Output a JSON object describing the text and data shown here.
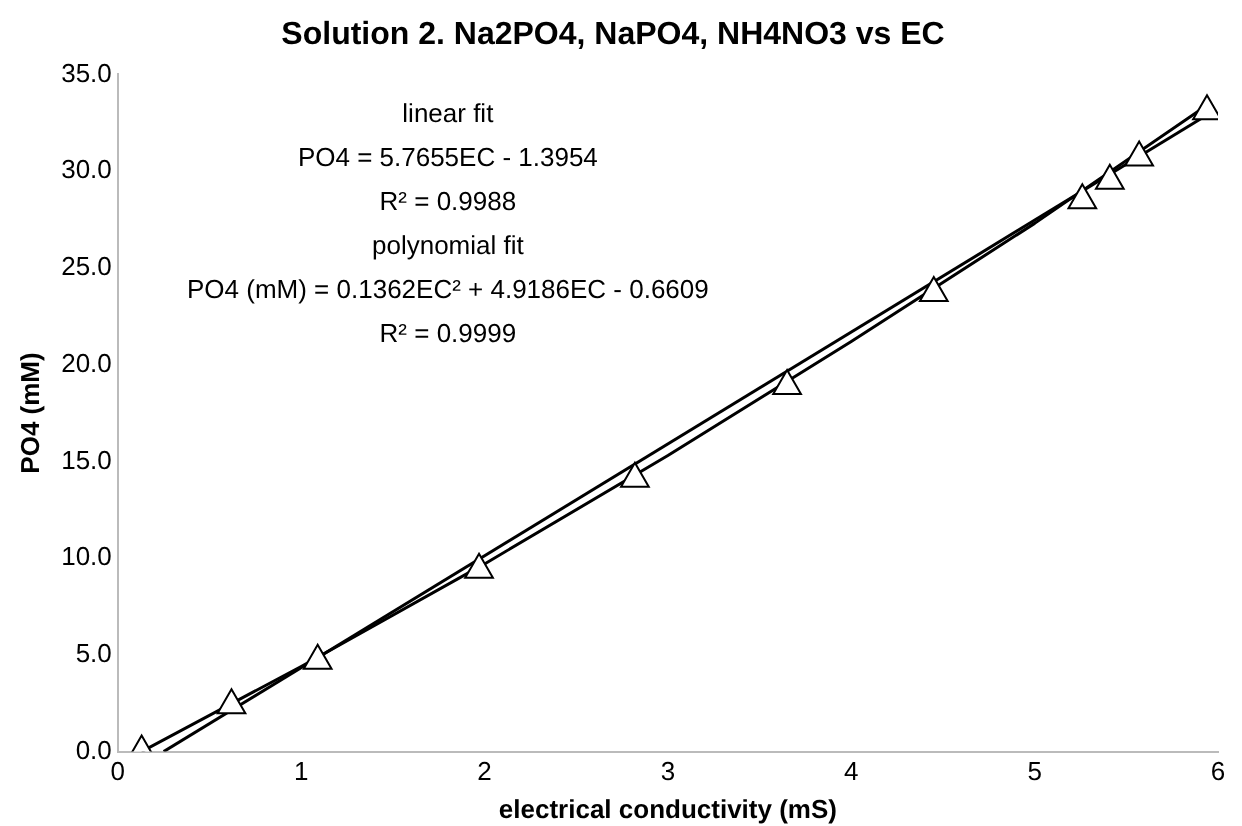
{
  "chart_data": {
    "type": "scatter",
    "title": "Solution 2. Na2PO4, NaPO4, NH4NO3 vs EC",
    "xlabel": "electrical conductivity (mS)",
    "ylabel": "PO4 (mM)",
    "annotations": [
      "linear fit",
      "PO4 = 5.7655EC - 1.3954",
      "R² = 0.9988",
      "polynomial fit",
      "PO4 (mM) = 0.1362EC² + 4.9186EC - 0.6609",
      "R² = 0.9999"
    ],
    "x": [
      0.13,
      0.62,
      1.09,
      1.97,
      2.82,
      3.65,
      4.45,
      5.26,
      5.41,
      5.57,
      5.94
    ],
    "series": [
      {
        "type": "scatter",
        "color": "#000000",
        "marker": "triangle",
        "values": [
          0.0,
          2.4,
          4.7,
          9.4,
          14.1,
          18.9,
          23.7,
          28.5,
          29.5,
          30.7,
          33.1
        ]
      },
      {
        "type": "line",
        "color": "#000000",
        "marker": "none",
        "x": [
          0.25,
          5.94
        ],
        "values": [
          0.0,
          32.9
        ]
      },
      {
        "type": "line",
        "color": "#000000",
        "marker": "none",
        "x": [
          0.13,
          1,
          2,
          3,
          4,
          5,
          5.94
        ],
        "values": [
          0.0,
          4.4,
          9.7,
          15.3,
          21.2,
          27.3,
          33.4
        ]
      }
    ],
    "xlim": [
      0,
      6
    ],
    "xticks": [
      0,
      1,
      2,
      3,
      4,
      5,
      6
    ],
    "ylim": [
      0,
      35
    ],
    "yticks": [
      {
        "value": 0,
        "label": "0.0"
      },
      {
        "value": 5,
        "label": "5.0"
      },
      {
        "value": 10,
        "label": "10.0"
      },
      {
        "value": 15,
        "label": "15.0"
      },
      {
        "value": 20,
        "label": "20.0"
      },
      {
        "value": 25,
        "label": "25.0"
      },
      {
        "value": 30,
        "label": "30.0"
      },
      {
        "value": 35,
        "label": "35.0"
      }
    ],
    "grid": false,
    "legend": false
  }
}
